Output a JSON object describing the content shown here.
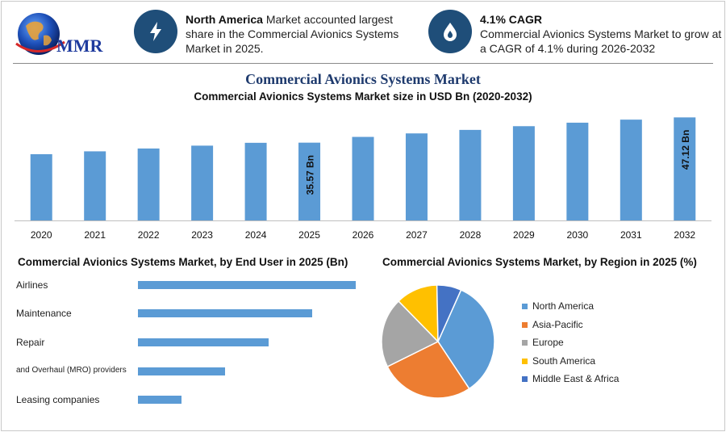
{
  "logo": {
    "text": "MMR"
  },
  "kpis": [
    {
      "icon": "lightning-icon",
      "bold": "North America",
      "text": " Market accounted largest share in the Commercial Avionics Systems Market in 2025."
    },
    {
      "icon": "flame-drop-icon",
      "bold": "4.1% CAGR",
      "text": "Commercial Avionics Systems Market to grow at a CAGR of 4.1% during 2026-2032"
    }
  ],
  "title": "Commercial Avionics Systems Market",
  "subtitle": "Commercial Avionics Systems Market size in USD Bn (2020-2032)",
  "end_user_title": "Commercial Avionics Systems Market, by End User in 2025 (Bn)",
  "region_title": "Commercial Avionics Systems Market, by Region in 2025 (%)",
  "colors": {
    "bar": "#5b9bd5",
    "accent": "#1f4e79",
    "title": "#1f3b6e"
  },
  "chart_data": [
    {
      "type": "bar",
      "title": "Commercial Avionics Systems Market size in USD Bn (2020-2032)",
      "categories": [
        "2020",
        "2021",
        "2022",
        "2023",
        "2024",
        "2025",
        "2026",
        "2027",
        "2028",
        "2029",
        "2030",
        "2031",
        "2032"
      ],
      "values": [
        30.3,
        31.6,
        32.9,
        34.2,
        35.5,
        35.57,
        38.2,
        39.8,
        41.4,
        43.1,
        44.7,
        46.1,
        47.12
      ],
      "data_labels": {
        "2025": "35.57 Bn",
        "2032": "47.12 Bn"
      },
      "ylim": [
        0,
        48
      ],
      "grid": false
    },
    {
      "type": "bar",
      "orientation": "horizontal",
      "title": "Commercial Avionics Systems Market, by End User in 2025 (Bn)",
      "categories": [
        "Airlines",
        "Maintenance",
        "Repair",
        "and Overhaul (MRO) providers",
        "Leasing companies"
      ],
      "values": [
        10,
        8,
        6,
        4,
        2
      ]
    },
    {
      "type": "pie",
      "title": "Commercial Avionics Systems Market, by Region in 2025 (%)",
      "categories": [
        "North America",
        "Asia-Pacific",
        "Europe",
        "South America",
        "Middle East & Africa"
      ],
      "values": [
        34,
        27,
        20,
        12,
        7
      ],
      "colors": [
        "#5b9bd5",
        "#ed7d31",
        "#a5a5a5",
        "#ffc000",
        "#4472c4"
      ],
      "legend": "right"
    }
  ]
}
